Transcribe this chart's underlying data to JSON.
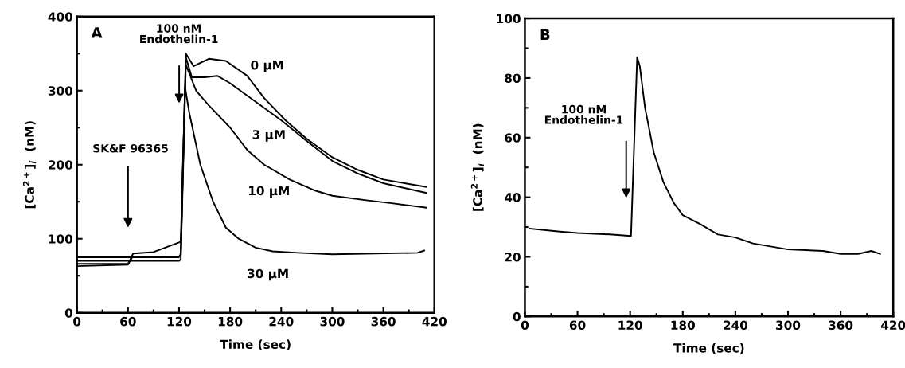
{
  "chart_data": [
    {
      "type": "line",
      "xlabel": "Time (sec)",
      "ylabel": "[Ca$^{2+}$]$_{i}$  (nM)",
      "xlim": [
        0,
        420
      ],
      "xticks": [
        0,
        60,
        120,
        180,
        240,
        300,
        360,
        420
      ],
      "ylim": [
        0,
        400
      ],
      "yticks": [
        0,
        100,
        200,
        300,
        400
      ],
      "grid": false,
      "marker": "none",
      "line_style": "solid",
      "annotations": [
        "A",
        "100 nM\nEndothelin-1",
        "SK&F 96365"
      ],
      "series": [
        {
          "name": "0 μM",
          "color": "#000000",
          "x": [
            0,
            60,
            66,
            120,
            122,
            128,
            137,
            155,
            175,
            200,
            220,
            245,
            270,
            300,
            330,
            360,
            410
          ],
          "values": [
            75,
            75,
            75,
            75,
            80,
            350,
            333,
            343,
            340,
            320,
            290,
            260,
            235,
            210,
            193,
            180,
            170
          ]
        },
        {
          "name": "3 μM",
          "color": "#000000",
          "x": [
            0,
            60,
            66,
            90,
            120,
            122,
            128,
            135,
            150,
            165,
            180,
            210,
            240,
            270,
            300,
            330,
            360,
            410
          ],
          "values": [
            66,
            66,
            80,
            82,
            95,
            97,
            345,
            318,
            318,
            320,
            310,
            285,
            260,
            232,
            205,
            188,
            175,
            162
          ]
        },
        {
          "name": "10 μM",
          "color": "#000000",
          "x": [
            0,
            120,
            122,
            128,
            140,
            155,
            180,
            200,
            220,
            250,
            280,
            300,
            340,
            370,
            410
          ],
          "values": [
            70,
            70,
            72,
            335,
            300,
            280,
            250,
            220,
            200,
            180,
            165,
            158,
            152,
            148,
            142
          ]
        },
        {
          "name": "30 μM",
          "color": "#000000",
          "x": [
            0,
            60,
            65,
            120,
            122,
            127,
            132,
            145,
            160,
            175,
            190,
            210,
            230,
            260,
            300,
            350,
            400,
            408
          ],
          "values": [
            63,
            65,
            75,
            76,
            78,
            305,
            270,
            200,
            150,
            115,
            100,
            88,
            83,
            81,
            79,
            80,
            81,
            84
          ]
        }
      ]
    },
    {
      "type": "line",
      "xlabel": "Time (sec)",
      "ylabel": "[Ca$^{2+}$]$_{i}$  (nM)",
      "xlim": [
        0,
        420
      ],
      "xticks": [
        0,
        60,
        120,
        180,
        240,
        300,
        360,
        420
      ],
      "ylim": [
        0,
        100
      ],
      "yticks": [
        0,
        20,
        40,
        60,
        80,
        100
      ],
      "grid": false,
      "marker": "none",
      "line_style": "solid",
      "annotations": [
        "B",
        "100 nM\nEndothelin-1"
      ],
      "series": [
        {
          "color": "#000000",
          "x": [
            5,
            40,
            60,
            100,
            121,
            128,
            131,
            137,
            147,
            158,
            170,
            180,
            200,
            220,
            240,
            260,
            280,
            300,
            340,
            360,
            380,
            395,
            405
          ],
          "values": [
            29.5,
            28.5,
            28,
            27.5,
            27,
            87,
            84,
            70,
            55,
            45,
            38,
            34,
            31,
            27.5,
            26.5,
            24.5,
            23.5,
            22.5,
            22,
            21,
            21,
            22,
            21
          ]
        }
      ]
    }
  ]
}
